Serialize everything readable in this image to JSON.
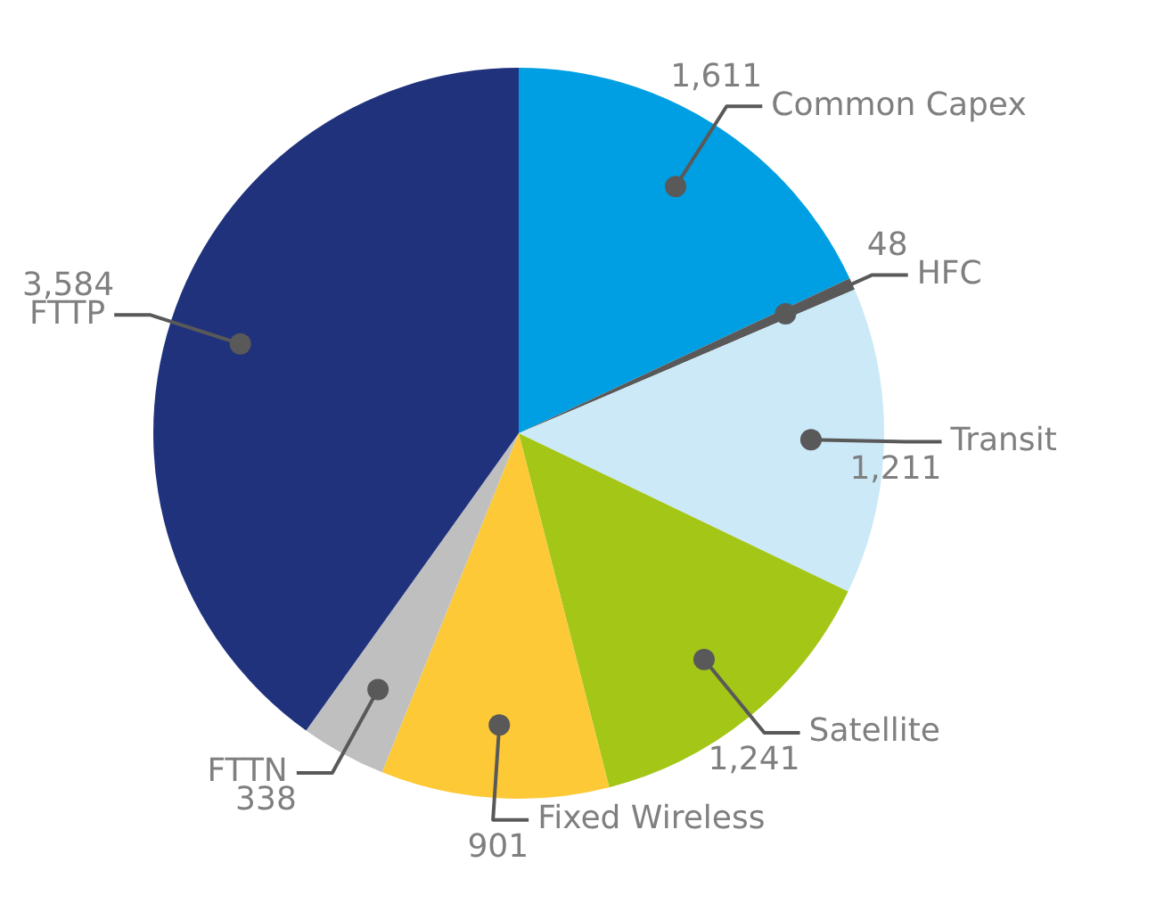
{
  "chart_data": {
    "type": "pie",
    "categories": [
      "Common Capex",
      "HFC",
      "Transit",
      "Satellite",
      "Fixed Wireless",
      "FTTN",
      "FTTP"
    ],
    "values": [
      1611,
      48,
      1211,
      1241,
      901,
      338,
      3584
    ],
    "colors": [
      "#009fe3",
      "#595959",
      "#cbe9f7",
      "#a3c617",
      "#fdc936",
      "#bfbfbf",
      "#21327d"
    ],
    "value_labels": [
      "1,611",
      "48",
      "1,211",
      "1,241",
      "901",
      "338",
      "3,584"
    ],
    "legend": false
  }
}
